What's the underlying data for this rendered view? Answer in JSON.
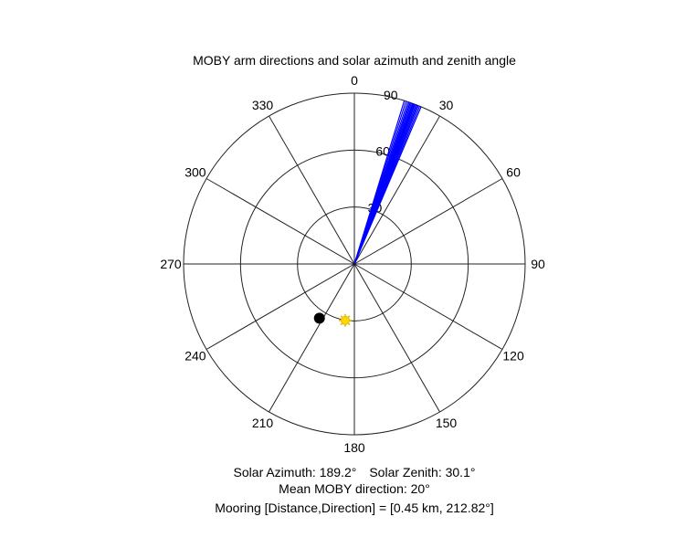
{
  "chart_data": {
    "type": "polar",
    "title": "MOBY arm directions and solar azimuth and zenith angle",
    "theta_zero": "top",
    "theta_direction": "clockwise",
    "theta_ticks": [
      "0",
      "30",
      "60",
      "90",
      "120",
      "150",
      "180",
      "210",
      "240",
      "270",
      "300",
      "330"
    ],
    "r_max": 90,
    "r_ticks": [
      "30",
      "60",
      "90"
    ],
    "arm_directions": {
      "color": "#0000ff",
      "radius": 90,
      "angles_deg": [
        17.0,
        17.6,
        18.2,
        18.7,
        19.1,
        19.5,
        19.9,
        20.2,
        20.5,
        20.8,
        21.2,
        21.6,
        22.0,
        22.5,
        23.0
      ]
    },
    "sun": {
      "azimuth_deg": 189.2,
      "zenith_deg": 30.1,
      "color": "#ffd700"
    },
    "mooring": {
      "direction_deg": 212.82,
      "r": 34,
      "color": "#000000"
    },
    "annotations": {
      "solar_azimuth": "Solar Azimuth: 189.2°",
      "solar_zenith": "Solar Zenith: 30.1°",
      "mean_moby": "Mean MOBY direction: 20°",
      "mooring": "Mooring [Distance,Direction] = [0.45 km, 212.82°]"
    }
  }
}
